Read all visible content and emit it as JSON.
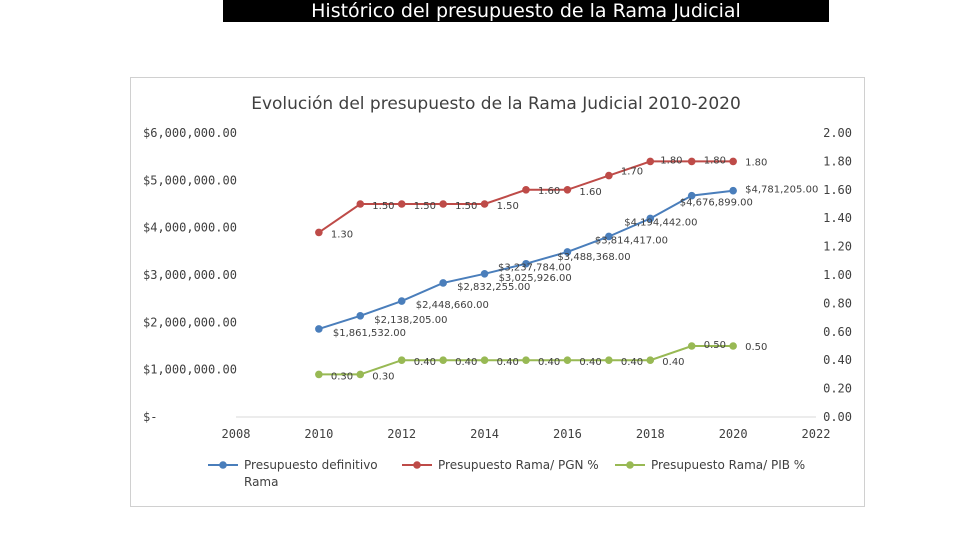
{
  "banner": {
    "title": "Histórico del presupuesto de la Rama Judicial"
  },
  "chart_data": {
    "type": "line",
    "title": "Evolución del presupuesto de la Rama Judicial 2010-2020",
    "x": [
      2010,
      2011,
      2012,
      2013,
      2014,
      2015,
      2016,
      2017,
      2018,
      2019,
      2020
    ],
    "xlim": [
      2008,
      2022
    ],
    "x_ticks": [
      "2008",
      "2010",
      "2012",
      "2014",
      "2016",
      "2018",
      "2020",
      "2022"
    ],
    "y_left_lim": [
      0,
      6000000
    ],
    "y_left_ticks": [
      "$-",
      "$1,000,000.00",
      "$2,000,000.00",
      "$3,000,000.00",
      "$4,000,000.00",
      "$5,000,000.00",
      "$6,000,000.00"
    ],
    "y_right_lim": [
      0,
      2
    ],
    "y_right_ticks": [
      "0.00",
      "0.20",
      "0.40",
      "0.60",
      "0.80",
      "1.00",
      "1.20",
      "1.40",
      "1.60",
      "1.80",
      "2.00"
    ],
    "grid": false,
    "legend_position": "bottom",
    "series": [
      {
        "name": "Presupuesto definitivo Rama",
        "axis": "left",
        "color": "#4a7ebb",
        "values": [
          1861532,
          2138205,
          2448660,
          2832255,
          3025926,
          3237784,
          3488368,
          3814417,
          4194442,
          4676899,
          4781205
        ],
        "labels": [
          "$1,861,532.00",
          "$2,138,205.00",
          "$2,448,660.00",
          "$2,832,255.00",
          "$3,025,926.00",
          "$3,237,784.00",
          "$3,488,368.00",
          "$3,814,417.00",
          "$4,194,442.00",
          "$4,676,899.00",
          "$4,781,205.00"
        ]
      },
      {
        "name": "Presupuesto Rama/ PGN %",
        "axis": "right",
        "color": "#be4b48",
        "values": [
          1.3,
          1.5,
          1.5,
          1.5,
          1.5,
          1.6,
          1.6,
          1.7,
          1.8,
          1.8,
          1.8
        ],
        "labels": [
          "1.30",
          "1.50",
          "1.50",
          "1.50",
          "1.50",
          "1.60",
          "1.60",
          "1.70",
          "1.80",
          "1.80",
          "1.80"
        ]
      },
      {
        "name": "Presupuesto Rama/ PIB %",
        "axis": "right",
        "color": "#98b954",
        "values": [
          0.3,
          0.3,
          0.4,
          0.4,
          0.4,
          0.4,
          0.4,
          0.4,
          0.4,
          0.5,
          0.5
        ],
        "labels": [
          "0.30",
          "0.30",
          "0.40",
          "0.40",
          "0.40",
          "0.40",
          "0.40",
          "0.40",
          "0.40",
          "0.50",
          "0.50"
        ]
      }
    ]
  }
}
